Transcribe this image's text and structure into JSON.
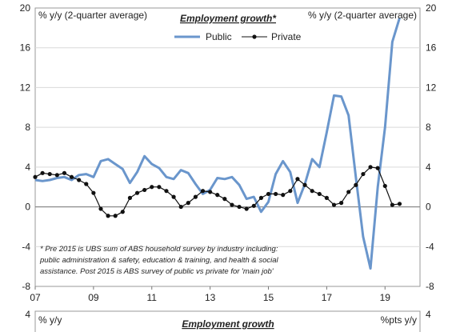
{
  "chart_data": {
    "type": "line",
    "title": "Employment growth*",
    "ylabel_left": "% y/y (2-quarter average)",
    "ylabel_right": "% y/y (2-quarter average)",
    "ylim": [
      -8,
      20
    ],
    "yticks": [
      "20",
      "16",
      "12",
      "8",
      "4",
      "0",
      "-4",
      "-8"
    ],
    "yticks_right": [
      "20",
      "16",
      "12",
      "8",
      "4",
      "0",
      "-4",
      "-8"
    ],
    "xlim": [
      2007,
      2020.2
    ],
    "xticks": [
      {
        "value": 2007,
        "label": "07"
      },
      {
        "value": 2009,
        "label": "09"
      },
      {
        "value": 2011,
        "label": "11"
      },
      {
        "value": 2013,
        "label": "13"
      },
      {
        "value": 2015,
        "label": "15"
      },
      {
        "value": 2017,
        "label": "17"
      },
      {
        "value": 2019,
        "label": "19"
      }
    ],
    "grid": true,
    "legend_position": "top-center",
    "series": [
      {
        "name": "Public",
        "color": "#6a96cc",
        "marker": "none",
        "x": [
          2007.0,
          2007.25,
          2007.5,
          2007.75,
          2008.0,
          2008.25,
          2008.5,
          2008.75,
          2009.0,
          2009.25,
          2009.5,
          2009.75,
          2010.0,
          2010.25,
          2010.5,
          2010.75,
          2011.0,
          2011.25,
          2011.5,
          2011.75,
          2012.0,
          2012.25,
          2012.5,
          2012.75,
          2013.0,
          2013.25,
          2013.5,
          2013.75,
          2014.0,
          2014.25,
          2014.5,
          2014.75,
          2015.0,
          2015.25,
          2015.5,
          2015.75,
          2016.0,
          2016.25,
          2016.5,
          2016.75,
          2017.0,
          2017.25,
          2017.5,
          2017.75,
          2018.0,
          2018.25,
          2018.5,
          2018.75,
          2019.0,
          2019.25,
          2019.5
        ],
        "y": [
          2.7,
          2.6,
          2.7,
          2.9,
          3.0,
          2.7,
          3.2,
          3.3,
          3.0,
          4.6,
          4.8,
          4.3,
          3.8,
          2.4,
          3.5,
          5.1,
          4.3,
          3.9,
          3.0,
          2.8,
          3.7,
          3.4,
          2.3,
          1.3,
          1.7,
          2.9,
          2.8,
          3.0,
          2.2,
          0.8,
          1.0,
          -0.5,
          0.5,
          3.3,
          4.6,
          3.5,
          0.4,
          2.3,
          4.8,
          4.0,
          7.5,
          11.2,
          11.1,
          9.2,
          3.0,
          -3.0,
          -6.2,
          2.0,
          8.0,
          16.6,
          19.0
        ]
      },
      {
        "name": "Private",
        "color": "#111111",
        "marker": "circle",
        "x": [
          2007.0,
          2007.25,
          2007.5,
          2007.75,
          2008.0,
          2008.25,
          2008.5,
          2008.75,
          2009.0,
          2009.25,
          2009.5,
          2009.75,
          2010.0,
          2010.25,
          2010.5,
          2010.75,
          2011.0,
          2011.25,
          2011.5,
          2011.75,
          2012.0,
          2012.25,
          2012.5,
          2012.75,
          2013.0,
          2013.25,
          2013.5,
          2013.75,
          2014.0,
          2014.25,
          2014.5,
          2014.75,
          2015.0,
          2015.25,
          2015.5,
          2015.75,
          2016.0,
          2016.25,
          2016.5,
          2016.75,
          2017.0,
          2017.25,
          2017.5,
          2017.75,
          2018.0,
          2018.25,
          2018.5,
          2018.75,
          2019.0,
          2019.25,
          2019.5
        ],
        "y": [
          3.0,
          3.4,
          3.3,
          3.2,
          3.4,
          3.0,
          2.7,
          2.3,
          1.4,
          -0.2,
          -0.9,
          -0.9,
          -0.5,
          0.9,
          1.4,
          1.7,
          2.0,
          2.0,
          1.6,
          1.0,
          0.0,
          0.4,
          1.0,
          1.6,
          1.5,
          1.2,
          0.8,
          0.2,
          0.0,
          -0.2,
          0.1,
          0.9,
          1.3,
          1.3,
          1.2,
          1.6,
          2.8,
          2.2,
          1.6,
          1.3,
          0.9,
          0.2,
          0.4,
          1.5,
          2.2,
          3.3,
          4.0,
          3.9,
          2.1,
          0.2,
          0.3
        ]
      }
    ],
    "annotation": [
      "* Pre 2015 is UBS sum of ABS household survey by industry including:",
      "public administration & safety, education & training, and health & social",
      "assistance. Post 2015 is ABS survey of public vs private for 'main job'"
    ]
  },
  "next_chart": {
    "top_tick_left": "4",
    "top_tick_right": "4",
    "ylabel_left": "% y/y",
    "ylabel_right": "%pts y/y",
    "title": "Employment growth"
  }
}
